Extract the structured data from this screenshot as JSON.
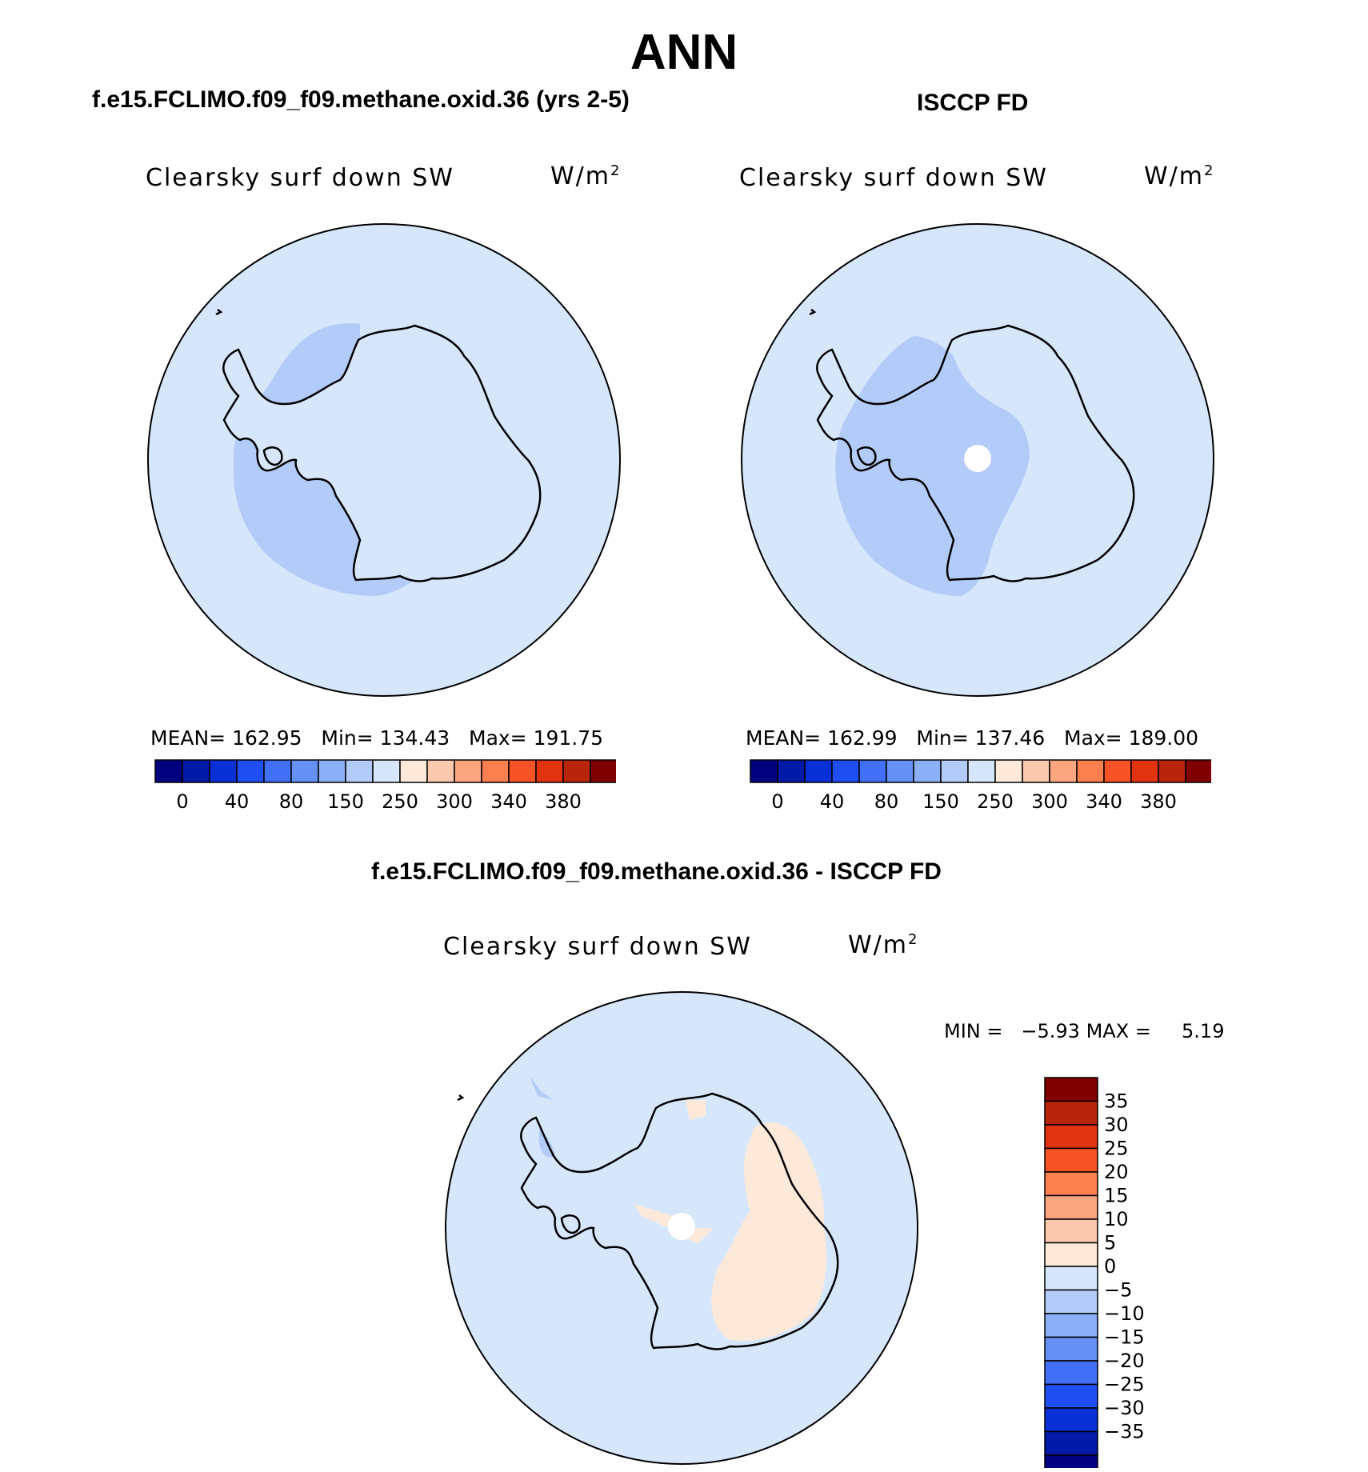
{
  "title": "ANN",
  "panels": [
    {
      "heading": "f.e15.FCLIMO.f09_f09.methane.oxid.36 (yrs 2-5)",
      "variable": "Clearsky surf down SW",
      "units": "W/m",
      "units_sup": "2",
      "stats": {
        "mean_label": "MEAN=",
        "mean": "162.95",
        "min_label": "Min=",
        "min": "134.43",
        "max_label": "Max=",
        "max": "191.75"
      }
    },
    {
      "heading": "ISCCP FD",
      "variable": "Clearsky surf down SW",
      "units": "W/m",
      "units_sup": "2",
      "stats": {
        "mean_label": "MEAN=",
        "mean": "162.99",
        "min_label": "Min=",
        "min": "137.46",
        "max_label": "Max=",
        "max": "189.00"
      }
    },
    {
      "heading": "f.e15.FCLIMO.f09_f09.methane.oxid.36 - ISCCP FD",
      "variable": "Clearsky surf down SW",
      "units": "W/m",
      "units_sup": "2",
      "stats": {
        "min_label": "MIN =",
        "min": "−5.93",
        "max_label": "MAX =",
        "max": "5.19"
      }
    }
  ],
  "colorbar_abs": {
    "colors": [
      "#000080",
      "#0319a8",
      "#0830d6",
      "#1f4ff2",
      "#416ff5",
      "#6591f5",
      "#8bb0f7",
      "#b3cbf8",
      "#d6e7fb",
      "#fde9d9",
      "#fdc9ae",
      "#fba67f",
      "#fb7f4f",
      "#f75326",
      "#e2330f",
      "#b8250a",
      "#800000"
    ],
    "labels": [
      "0",
      "40",
      "80",
      "150",
      "250",
      "300",
      "340",
      "380"
    ]
  },
  "colorbar_diff": {
    "colors": [
      "#800000",
      "#b8250a",
      "#e2330f",
      "#f75326",
      "#fb7f4f",
      "#fba67f",
      "#fdc9ae",
      "#fde9d9",
      "#d6e7fb",
      "#b3cbf8",
      "#8bb0f7",
      "#6591f5",
      "#416ff5",
      "#1f4ff2",
      "#0830d6",
      "#0319a8",
      "#000080"
    ],
    "labels": [
      "35",
      "30",
      "25",
      "20",
      "15",
      "10",
      "5",
      "0",
      "−5",
      "−10",
      "−15",
      "−20",
      "−25",
      "−30",
      "−35"
    ]
  },
  "map_colors": {
    "ocean": "#d6e7fb",
    "band": "#b3cbf8",
    "positive": "#fde9d9",
    "missing": "#ffffff",
    "coast": "#000000"
  }
}
